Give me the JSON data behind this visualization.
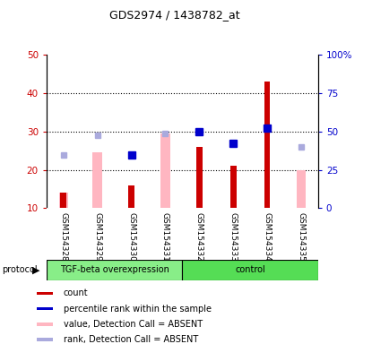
{
  "title": "GDS2974 / 1438782_at",
  "samples": [
    "GSM154328",
    "GSM154329",
    "GSM154330",
    "GSM154331",
    "GSM154332",
    "GSM154333",
    "GSM154334",
    "GSM154335"
  ],
  "red_bars": [
    14,
    null,
    16,
    null,
    26,
    21,
    43,
    null
  ],
  "pink_bars": [
    14,
    24.5,
    null,
    29.5,
    null,
    null,
    null,
    20
  ],
  "blue_squares_left": [
    null,
    null,
    24,
    null,
    30,
    27,
    31,
    null
  ],
  "light_blue_squares_left": [
    24,
    29,
    null,
    29.5,
    null,
    null,
    null,
    26
  ],
  "ylim_left": [
    10,
    50
  ],
  "ylim_right": [
    0,
    100
  ],
  "yticks_left": [
    10,
    20,
    30,
    40,
    50
  ],
  "yticks_right": [
    0,
    25,
    50,
    75,
    100
  ],
  "ytick_labels_left": [
    "10",
    "20",
    "30",
    "40",
    "50"
  ],
  "ytick_labels_right": [
    "0",
    "25",
    "50",
    "75",
    "100%"
  ],
  "red_bar_color": "#CC0000",
  "pink_bar_color": "#FFB6C1",
  "blue_sq_color": "#0000CC",
  "light_blue_sq_color": "#AAAADD",
  "bg_color": "#CCCCCC",
  "plot_bg": "white",
  "left_axis_color": "#CC0000",
  "right_axis_color": "#0000CC",
  "tfg_color": "#88EE88",
  "ctrl_color": "#55DD55",
  "legend_items": [
    {
      "label": "count",
      "color": "#CC0000"
    },
    {
      "label": "percentile rank within the sample",
      "color": "#0000CC"
    },
    {
      "label": "value, Detection Call = ABSENT",
      "color": "#FFB6C1"
    },
    {
      "label": "rank, Detection Call = ABSENT",
      "color": "#AAAADD"
    }
  ]
}
